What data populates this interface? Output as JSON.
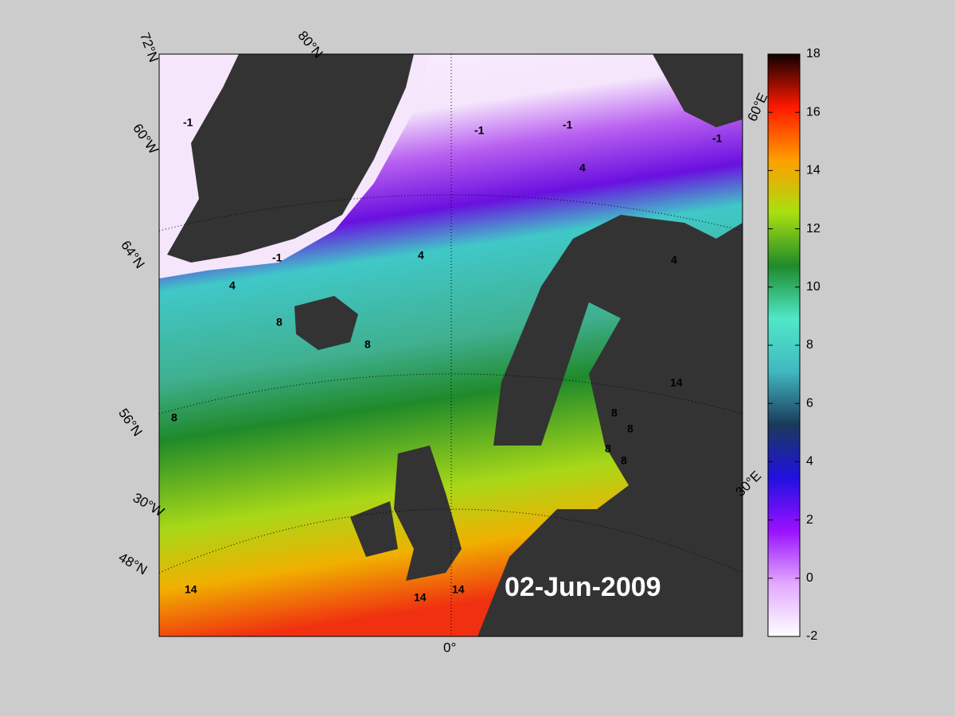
{
  "map": {
    "date": "02-Jun-2009",
    "graticule_labels": [
      "72°N",
      "80°N",
      "60°W",
      "64°N",
      "56°N",
      "30°W",
      "48°N",
      "0°",
      "30°E",
      "60°E"
    ],
    "contour_labels": [
      -1,
      -1,
      -1,
      -1,
      -1,
      4,
      4,
      4,
      4,
      8,
      8,
      8,
      8,
      8,
      8,
      8,
      14,
      14,
      14,
      14
    ]
  },
  "colorbar": {
    "ylim": [
      -2,
      18
    ],
    "yticks": [
      -2,
      0,
      2,
      4,
      6,
      8,
      10,
      12,
      14,
      16,
      18
    ],
    "colormap": [
      "#ffffff",
      "#e2a8ff",
      "#9a10ff",
      "#2010e0",
      "#1a3a5a",
      "#40b8c0",
      "#50e8c8",
      "#1f8a2a",
      "#a8e010",
      "#ff9e00",
      "#ff1800",
      "#100000"
    ]
  }
}
